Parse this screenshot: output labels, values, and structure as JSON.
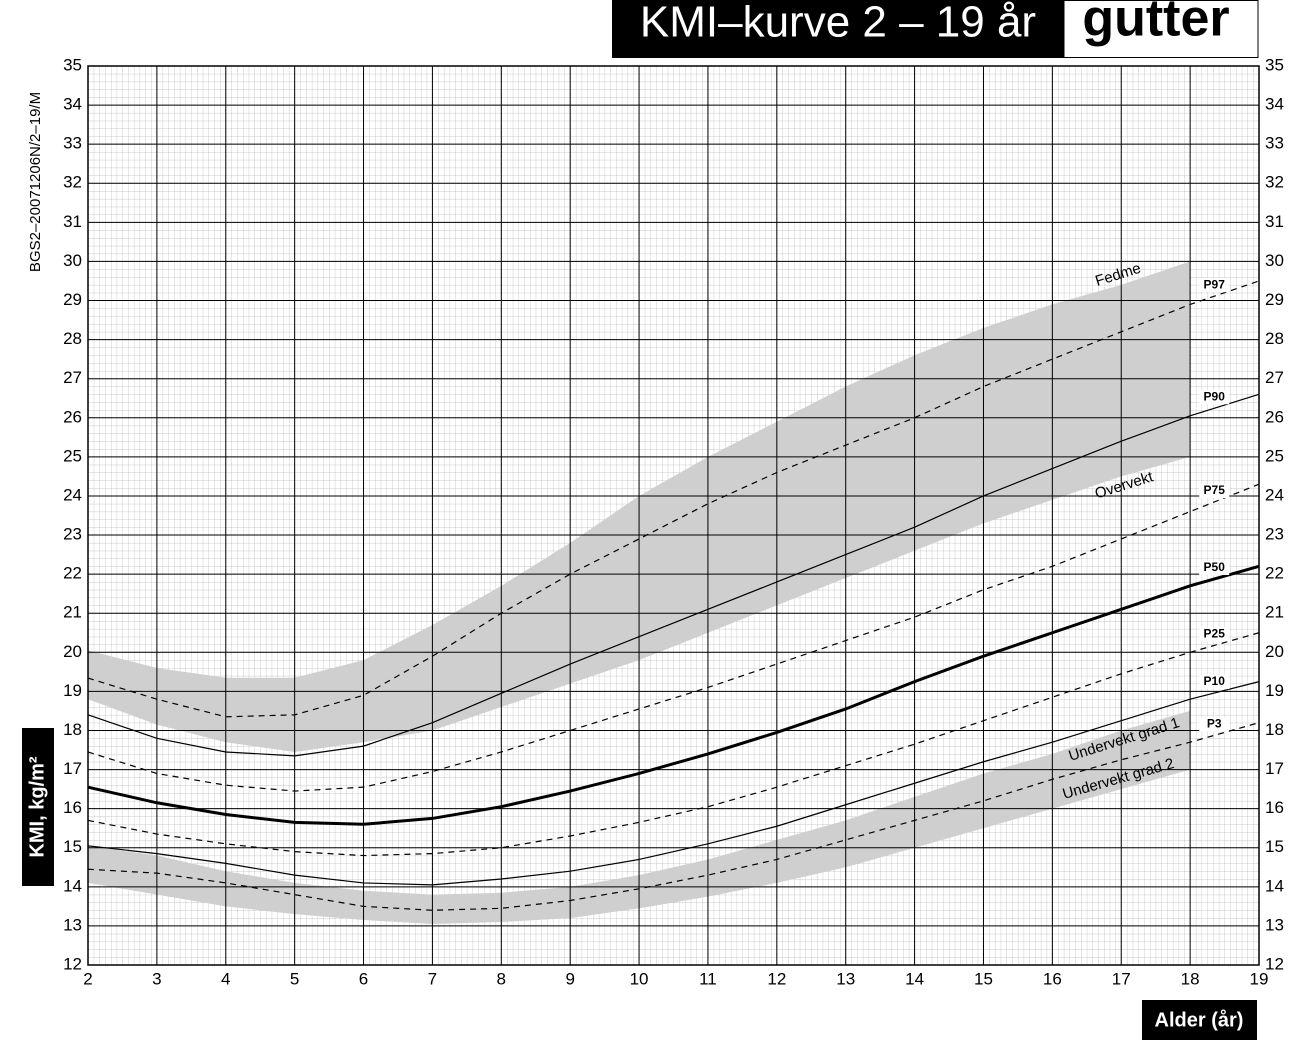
{
  "chart_data": {
    "type": "line",
    "title": "KMI–kurve 2 – 19 år",
    "subtitle": "gutter",
    "side_note": "BGS2–20071206N/2–19/M",
    "ylabel": "KMI, kg/m²",
    "xlabel": "Alder (år)",
    "xlim": [
      2,
      19
    ],
    "xticks": [
      2,
      3,
      4,
      5,
      6,
      7,
      8,
      9,
      10,
      11,
      12,
      13,
      14,
      15,
      16,
      17,
      18,
      19
    ],
    "ylim": [
      12,
      35
    ],
    "yticks": [
      12,
      13,
      14,
      15,
      16,
      17,
      18,
      19,
      20,
      21,
      22,
      23,
      24,
      25,
      26,
      27,
      28,
      29,
      30,
      31,
      32,
      33,
      34,
      35
    ],
    "grid": true,
    "x": [
      2,
      3,
      4,
      5,
      6,
      7,
      8,
      9,
      10,
      11,
      12,
      13,
      14,
      15,
      16,
      17,
      18,
      19
    ],
    "series": [
      {
        "name": "P97",
        "color": "#000000",
        "style": "dashed",
        "width": 1.2,
        "values": [
          19.34,
          18.8,
          18.35,
          18.4,
          18.9,
          19.9,
          21.0,
          22.0,
          22.9,
          23.8,
          24.6,
          25.3,
          26.0,
          26.8,
          27.5,
          28.2,
          28.9,
          29.5
        ]
      },
      {
        "name": "P90",
        "color": "#000000",
        "style": "solid",
        "width": 1.2,
        "values": [
          18.4,
          17.8,
          17.45,
          17.35,
          17.6,
          18.2,
          18.95,
          19.7,
          20.4,
          21.1,
          21.8,
          22.5,
          23.2,
          24.0,
          24.7,
          25.4,
          26.05,
          26.6
        ]
      },
      {
        "name": "P75",
        "color": "#000000",
        "style": "dashed",
        "width": 1.2,
        "values": [
          17.45,
          16.9,
          16.6,
          16.45,
          16.55,
          16.95,
          17.45,
          18.0,
          18.55,
          19.1,
          19.7,
          20.3,
          20.9,
          21.6,
          22.2,
          22.9,
          23.6,
          24.3
        ]
      },
      {
        "name": "P50",
        "color": "#000000",
        "style": "solid",
        "width": 3,
        "values": [
          16.55,
          16.15,
          15.85,
          15.65,
          15.6,
          15.75,
          16.05,
          16.45,
          16.9,
          17.4,
          17.95,
          18.55,
          19.25,
          19.9,
          20.5,
          21.1,
          21.7,
          22.2
        ]
      },
      {
        "name": "P25",
        "color": "#000000",
        "style": "dashed",
        "width": 1.2,
        "values": [
          15.7,
          15.35,
          15.1,
          14.9,
          14.8,
          14.85,
          15.0,
          15.3,
          15.65,
          16.05,
          16.55,
          17.1,
          17.65,
          18.25,
          18.85,
          19.45,
          20.0,
          20.5
        ]
      },
      {
        "name": "P10",
        "color": "#000000",
        "style": "solid",
        "width": 1.2,
        "values": [
          15.05,
          14.85,
          14.6,
          14.3,
          14.1,
          14.05,
          14.2,
          14.4,
          14.7,
          15.1,
          15.55,
          16.1,
          16.65,
          17.2,
          17.7,
          18.25,
          18.8,
          19.25
        ]
      },
      {
        "name": "P3",
        "color": "#000000",
        "style": "dashed",
        "width": 1.2,
        "values": [
          14.45,
          14.35,
          14.1,
          13.8,
          13.5,
          13.4,
          13.45,
          13.65,
          13.95,
          14.3,
          14.7,
          15.2,
          15.7,
          16.2,
          16.75,
          17.25,
          17.7,
          18.2
        ]
      }
    ],
    "bands": [
      {
        "color": "#cfcfcf",
        "upper_label": "Fedme",
        "lower_label": "Overvekt",
        "x": [
          2,
          3,
          4,
          5,
          6,
          7,
          8,
          9,
          10,
          11,
          12,
          13,
          14,
          15,
          16,
          17,
          18
        ],
        "upper": [
          20.05,
          19.6,
          19.35,
          19.35,
          19.8,
          20.7,
          21.7,
          22.8,
          24.0,
          25.0,
          25.9,
          26.8,
          27.6,
          28.3,
          28.9,
          29.4,
          30.0
        ],
        "lower": [
          18.8,
          18.15,
          17.7,
          17.45,
          17.7,
          18.0,
          18.6,
          19.2,
          19.8,
          20.5,
          21.2,
          21.9,
          22.6,
          23.3,
          23.9,
          24.5,
          25.0
        ]
      },
      {
        "color": "#cfcfcf",
        "upper_label": "Undervekt grad 1",
        "lower_label": "Undervekt grad 2",
        "x": [
          2,
          3,
          4,
          5,
          6,
          7,
          8,
          9,
          10,
          11,
          12,
          13,
          14,
          15,
          16,
          17,
          18
        ],
        "upper": [
          15.05,
          14.8,
          14.4,
          14.1,
          13.9,
          13.8,
          13.85,
          14.0,
          14.3,
          14.7,
          15.2,
          15.7,
          16.3,
          16.9,
          17.4,
          18.0,
          18.5
        ],
        "lower": [
          14.1,
          13.8,
          13.5,
          13.3,
          13.15,
          13.05,
          13.1,
          13.2,
          13.45,
          13.75,
          14.1,
          14.5,
          15.0,
          15.5,
          16.0,
          16.5,
          17.0
        ]
      }
    ]
  }
}
